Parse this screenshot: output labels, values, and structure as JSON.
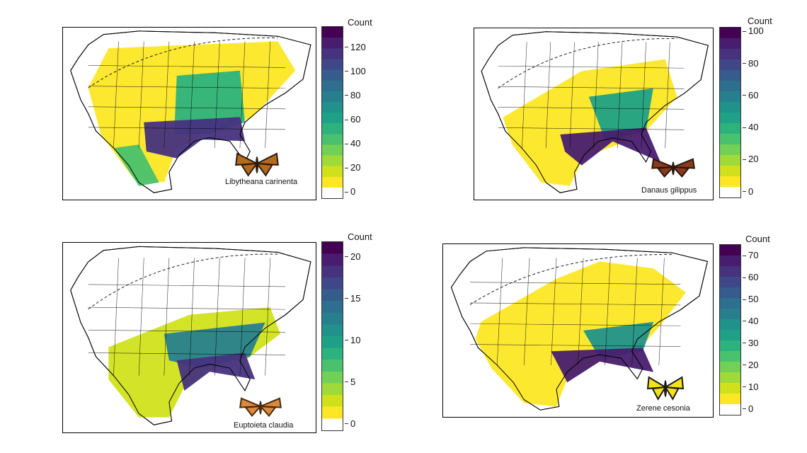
{
  "colorscale": [
    "#ffffff",
    "#fde725",
    "#d0e11c",
    "#a0da39",
    "#73d056",
    "#4ac16d",
    "#2db27d",
    "#1fa187",
    "#21918c",
    "#277f8e",
    "#2e6e8e",
    "#365c8d",
    "#3f4788",
    "#46327e",
    "#481d6f",
    "#440154"
  ],
  "panels": [
    {
      "id": "libytheana",
      "species": "Libytheana carinenta",
      "legend_title": "Count",
      "ticks": [
        "0",
        "20",
        "40",
        "60",
        "80",
        "100",
        "120"
      ],
      "max": 135,
      "butterfly_colors": [
        "#b56a1f",
        "#2a1a10"
      ]
    },
    {
      "id": "danaus",
      "species": "Danaus gilippus",
      "legend_title": "Count",
      "ticks": [
        "0",
        "20",
        "40",
        "60",
        "80",
        "100"
      ],
      "max": 101,
      "butterfly_colors": [
        "#8a3a1c",
        "#2a150c"
      ]
    },
    {
      "id": "euptoieta",
      "species": "Euptoieta claudia",
      "legend_title": "Count",
      "ticks": [
        "0",
        "5",
        "10",
        "15",
        "20"
      ],
      "max": 21.5,
      "butterfly_colors": [
        "#d98a3a",
        "#4a2a12"
      ]
    },
    {
      "id": "zerene",
      "species": "Zerene cesonia",
      "legend_title": "Count",
      "ticks": [
        "0",
        "10",
        "20",
        "30",
        "40",
        "50",
        "60",
        "70"
      ],
      "max": 74,
      "butterfly_colors": [
        "#f5e21a",
        "#1a1a1a"
      ]
    }
  ]
}
